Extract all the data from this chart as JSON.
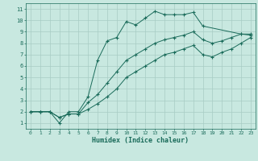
{
  "xlabel": "Humidex (Indice chaleur)",
  "background_color": "#c8e8e0",
  "line_color": "#1a6b5a",
  "grid_color": "#a8ccc4",
  "xlim": [
    -0.5,
    23.5
  ],
  "ylim": [
    0.5,
    11.5
  ],
  "xticks": [
    0,
    1,
    2,
    3,
    4,
    5,
    6,
    7,
    8,
    9,
    10,
    11,
    12,
    13,
    14,
    15,
    16,
    17,
    18,
    19,
    20,
    21,
    22,
    23
  ],
  "yticks": [
    1,
    2,
    3,
    4,
    5,
    6,
    7,
    8,
    9,
    10,
    11
  ],
  "series": [
    {
      "x": [
        0,
        1,
        2,
        3,
        4,
        5,
        6,
        7,
        8,
        9,
        10,
        11,
        12,
        13,
        14,
        15,
        16,
        17,
        18,
        22,
        23
      ],
      "y": [
        2,
        2,
        2,
        1,
        2,
        2,
        3.3,
        6.5,
        8.2,
        8.5,
        9.9,
        9.6,
        10.2,
        10.8,
        10.5,
        10.5,
        10.5,
        10.7,
        9.5,
        8.8,
        8.7
      ]
    },
    {
      "x": [
        0,
        1,
        2,
        3,
        4,
        5,
        6,
        7,
        8,
        9,
        10,
        11,
        12,
        13,
        14,
        15,
        16,
        17,
        18,
        19,
        20,
        21,
        22,
        23
      ],
      "y": [
        2,
        2,
        2,
        1.5,
        1.8,
        1.8,
        2.8,
        3.5,
        4.5,
        5.5,
        6.5,
        7.0,
        7.5,
        8.0,
        8.3,
        8.5,
        8.7,
        9.0,
        8.3,
        8.0,
        8.2,
        8.5,
        8.8,
        8.8
      ]
    },
    {
      "x": [
        0,
        1,
        2,
        3,
        4,
        5,
        6,
        7,
        8,
        9,
        10,
        11,
        12,
        13,
        14,
        15,
        16,
        17,
        18,
        19,
        20,
        21,
        22,
        23
      ],
      "y": [
        2,
        2,
        2,
        1.5,
        1.8,
        1.8,
        2.2,
        2.7,
        3.3,
        4.0,
        5.0,
        5.5,
        6.0,
        6.5,
        7.0,
        7.2,
        7.5,
        7.8,
        7.0,
        6.8,
        7.2,
        7.5,
        8.0,
        8.5
      ]
    }
  ]
}
